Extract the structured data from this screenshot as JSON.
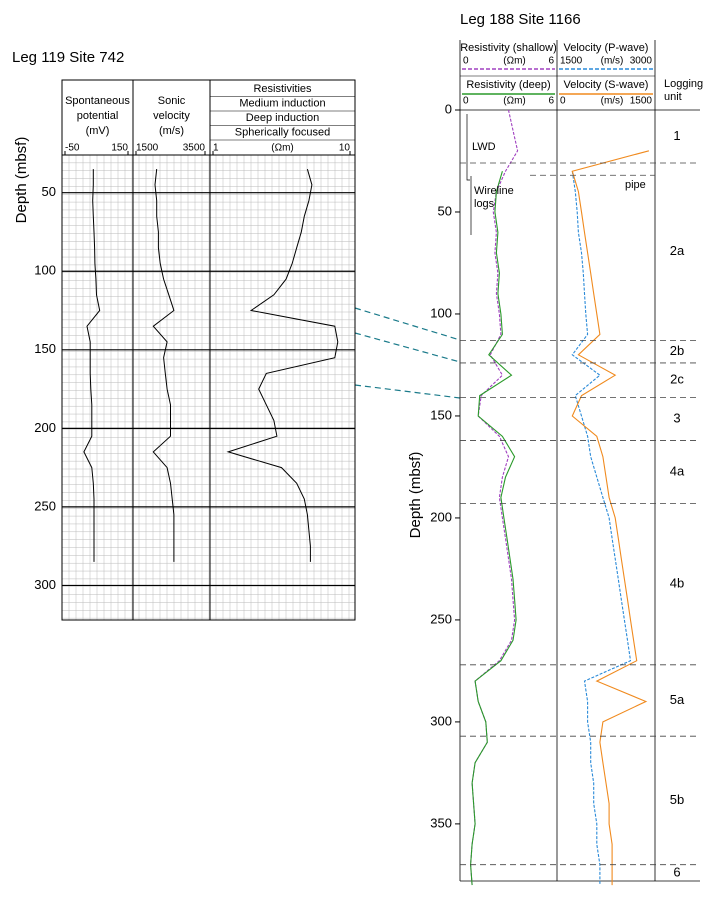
{
  "left": {
    "type": "well-log",
    "title": "Leg 119 Site 742",
    "y_label": "Depth (mbsf)",
    "ylim": [
      26,
      322
    ],
    "yticks": [
      50,
      100,
      150,
      200,
      250,
      300
    ],
    "depths": [
      35,
      45,
      55,
      65,
      75,
      85,
      95,
      105,
      115,
      125,
      135,
      145,
      155,
      165,
      175,
      185,
      195,
      205,
      215,
      225,
      235,
      245,
      255,
      265,
      275,
      285
    ],
    "tracks": [
      {
        "header": [
          "Spontaneous",
          "potential",
          "(mV)"
        ],
        "xlim": [
          -50,
          150
        ],
        "xticks": [
          -50,
          150
        ],
        "values": [
          40,
          40,
          38,
          40,
          42,
          44,
          45,
          48,
          50,
          60,
          20,
          30,
          30,
          30,
          32,
          35,
          35,
          35,
          10,
          35,
          40,
          42,
          42,
          42,
          42,
          42
        ]
      },
      {
        "header": [
          "Sonic",
          "velocity",
          "(m/s)"
        ],
        "xlim": [
          1500,
          3500
        ],
        "xticks": [
          1500,
          3500
        ],
        "values": [
          2100,
          2050,
          2100,
          2100,
          2150,
          2150,
          2200,
          2300,
          2450,
          2600,
          2000,
          2400,
          2300,
          2350,
          2400,
          2500,
          2500,
          2500,
          2000,
          2400,
          2500,
          2550,
          2600,
          2600,
          2600,
          2600
        ]
      },
      {
        "header": [
          "Resistivities",
          "Medium induction",
          "Deep induction",
          "Spherically focused"
        ],
        "unit": "(Ωm)",
        "xlim": [
          1,
          10
        ],
        "xticks": [
          1,
          10
        ],
        "values": [
          7.2,
          7.5,
          7.3,
          7.0,
          6.8,
          6.5,
          6.2,
          5.8,
          5.0,
          3.5,
          9.0,
          9.2,
          9.0,
          4.5,
          4.0,
          4.5,
          5.0,
          5.2,
          2.0,
          5.5,
          6.5,
          7.0,
          7.2,
          7.3,
          7.4,
          7.4
        ]
      }
    ]
  },
  "right": {
    "type": "well-log",
    "title": "Leg 188 Site 1166",
    "y_label": "Depth (mbsf)",
    "ylim": [
      0,
      378
    ],
    "yticks": [
      0,
      50,
      100,
      150,
      200,
      250,
      300,
      350
    ],
    "depths": [
      0,
      10,
      20,
      30,
      40,
      50,
      60,
      70,
      80,
      90,
      100,
      110,
      120,
      130,
      140,
      150,
      160,
      170,
      180,
      190,
      200,
      210,
      220,
      230,
      240,
      250,
      260,
      270,
      280,
      290,
      300,
      310,
      320,
      330,
      340,
      350,
      360,
      370,
      380
    ],
    "tracks": [
      {
        "series": [
          {
            "name": "Resistivity (shallow)",
            "color": "#a040c0",
            "dashed": true,
            "unit": "(Ωm)",
            "xlim": [
              0,
              6
            ],
            "xticks": [
              0,
              6
            ],
            "values": [
              3.0,
              3.3,
              3.6,
              2.8,
              2.2,
              2.0,
              2.2,
              2.1,
              2.3,
              2.2,
              2.4,
              2.5,
              1.8,
              2.6,
              1.2,
              1.0,
              2.4,
              3.0,
              2.6,
              2.4,
              2.6,
              2.8,
              3.0,
              3.2,
              3.3,
              3.4,
              3.2,
              2.4,
              0.8,
              1.0,
              1.5,
              1.6,
              0.8,
              0.6,
              0.7,
              0.8,
              0.6,
              0.5,
              0.6
            ]
          },
          {
            "name": "Resistivity (deep)",
            "color": "#2a9a2a",
            "dashed": false,
            "unit": "(Ωm)",
            "xlim": [
              0,
              6
            ],
            "xticks": [
              0,
              6
            ],
            "values": [
              null,
              null,
              null,
              2.6,
              2.2,
              2.1,
              2.3,
              2.2,
              2.4,
              2.3,
              2.5,
              2.6,
              1.7,
              3.2,
              1.1,
              1.0,
              2.6,
              3.4,
              2.8,
              2.5,
              2.7,
              2.9,
              3.1,
              3.3,
              3.4,
              3.5,
              3.3,
              2.5,
              0.8,
              1.0,
              1.5,
              1.6,
              0.8,
              0.6,
              0.7,
              0.8,
              0.6,
              0.5,
              0.6
            ]
          }
        ]
      },
      {
        "series": [
          {
            "name": "Velocity (P-wave)",
            "color": "#2a8ad8",
            "dashed": true,
            "unit": "(m/s)",
            "xlim": [
              1500,
              3000
            ],
            "xticks": [
              1500,
              3000
            ],
            "values": [
              null,
              null,
              null,
              1700,
              1750,
              1780,
              1800,
              1850,
              1880,
              1900,
              1920,
              1950,
              1700,
              2150,
              1750,
              1850,
              1950,
              2000,
              2100,
              2200,
              2300,
              2350,
              2400,
              2450,
              2500,
              2550,
              2600,
              2650,
              1900,
              1950,
              1950,
              2000,
              2000,
              2050,
              2050,
              2100,
              2100,
              2150,
              2150
            ]
          },
          {
            "name": "Velocity (S-wave)",
            "color": "#f08a1e",
            "dashed": false,
            "unit": "(m/s)",
            "xlim": [
              0,
              1500
            ],
            "xticks": [
              0,
              1500
            ],
            "values": [
              null,
              null,
              1450,
              200,
              300,
              350,
              400,
              450,
              500,
              550,
              600,
              650,
              300,
              900,
              350,
              200,
              600,
              700,
              750,
              800,
              900,
              950,
              1000,
              1050,
              1100,
              1150,
              1200,
              1250,
              600,
              1400,
              700,
              650,
              700,
              750,
              800,
              800,
              850,
              850,
              850
            ]
          }
        ]
      }
    ],
    "logging_unit": [
      "Logging",
      "unit"
    ],
    "units": [
      "1",
      "2a",
      "2b",
      "2c",
      "3",
      "4a",
      "4b",
      "5a",
      "5b",
      "6"
    ],
    "unit_boundaries": [
      26,
      113,
      124,
      141,
      162,
      193,
      272,
      307,
      370
    ],
    "annotations": {
      "lwd": "LWD",
      "wireline": [
        "Wireline",
        "logs"
      ],
      "pipe": {
        "text": "pipe",
        "depth": 32
      }
    }
  }
}
